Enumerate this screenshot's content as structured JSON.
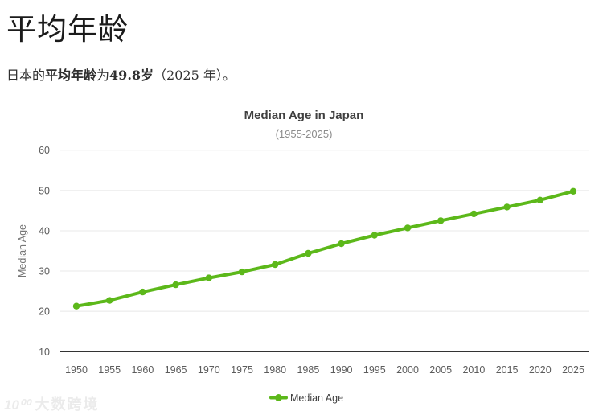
{
  "header": {
    "title": "平均年龄"
  },
  "description": {
    "part1": "日本的",
    "part2": "平均年龄",
    "part3": "为",
    "part4": "49.8岁",
    "part5": "（2025 年）。"
  },
  "chart_data": {
    "type": "line",
    "title": "Median Age in Japan",
    "subtitle": "(1955-2025)",
    "xlabel": "",
    "ylabel": "Median Age",
    "legend": [
      "Median Age"
    ],
    "legend_position": "bottom",
    "grid": true,
    "categories": [
      "1950",
      "1955",
      "1960",
      "1965",
      "1970",
      "1975",
      "1980",
      "1985",
      "1990",
      "1995",
      "2000",
      "2005",
      "2010",
      "2015",
      "2020",
      "2025"
    ],
    "series": [
      {
        "name": "Median Age",
        "color": "#5cb81a",
        "values": [
          21.3,
          22.7,
          24.8,
          26.6,
          28.3,
          29.8,
          31.6,
          34.4,
          36.8,
          38.9,
          40.7,
          42.5,
          44.2,
          45.9,
          47.6,
          49.8
        ]
      }
    ],
    "ylim": [
      10,
      60
    ],
    "yticks": [
      10,
      20,
      30,
      40,
      50,
      60
    ]
  },
  "watermark": {
    "logo": "10⁰⁰",
    "text": "大数跨境"
  }
}
